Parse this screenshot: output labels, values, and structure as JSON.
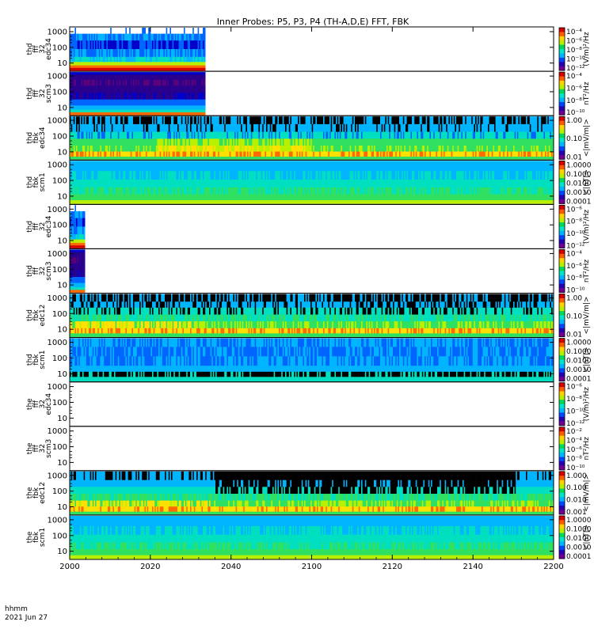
{
  "chart_data": {
    "type": "heatmap",
    "title": "Inner Probes: P5, P3, P4 (TH-A,D,E) FFT, FBK",
    "x_tick_labels": [
      "2000",
      "2020",
      "2040",
      "2100",
      "2120",
      "2140",
      "2200"
    ],
    "xlim": [
      "2000",
      "2200"
    ],
    "time_label": "hhmm",
    "date_label": "2021 Jun 27",
    "y_scale": "log",
    "y_tick_labels": [
      "1000",
      "100",
      "10"
    ],
    "panels": [
      {
        "label": [
          "thd",
          "fff",
          "32",
          "edc34"
        ],
        "probe": "thd",
        "kind": "fff_e",
        "data_coverage": [
          0.0,
          0.28
        ],
        "cb_label": "(V/m)²/Hz",
        "cb_ticks": [
          "10⁻⁴",
          "10⁻⁶",
          "10⁻⁸",
          "10⁻¹⁰",
          "10⁻¹²"
        ]
      },
      {
        "label": [
          "thd",
          "fff",
          "32",
          "scm3"
        ],
        "probe": "thd",
        "kind": "fff_b",
        "data_coverage": [
          0.0,
          0.28
        ],
        "cb_label": "nT²/Hz",
        "cb_ticks": [
          "10⁻⁴",
          "10⁻⁶",
          "10⁻⁸",
          "10⁻¹⁰"
        ]
      },
      {
        "label": [
          "thd",
          "fbk",
          "edc34"
        ],
        "probe": "thd",
        "kind": "fbk_e",
        "data_coverage": [
          0.0,
          1.0
        ],
        "cb_label": "<|mV/m|>",
        "cb_ticks": [
          "1.00",
          "0.10",
          "0.01"
        ]
      },
      {
        "label": [
          "thd",
          "fbk",
          "scm1"
        ],
        "probe": "thd",
        "kind": "fbk_b",
        "data_coverage": [
          0.0,
          1.0
        ],
        "cb_label": "<|nT|>",
        "cb_ticks": [
          "1.0000",
          "0.1000",
          "0.0100",
          "0.0010",
          "0.0001"
        ]
      },
      {
        "label": [
          "thd",
          "fff",
          "32",
          "edc34"
        ],
        "probe": "thd",
        "kind": "fff_e",
        "data_coverage": [
          0.0,
          0.03
        ],
        "cb_label": "(V/m)²/Hz",
        "cb_ticks": [
          "10⁻⁶",
          "10⁻⁸",
          "10⁻¹⁰",
          "10⁻¹²"
        ]
      },
      {
        "label": [
          "thd",
          "fff",
          "32",
          "scm3"
        ],
        "probe": "thd",
        "kind": "fff_b",
        "data_coverage": [
          0.0,
          0.03
        ],
        "cb_label": "nT²/Hz",
        "cb_ticks": [
          "10⁻⁴",
          "10⁻⁶",
          "10⁻⁸",
          "10⁻¹⁰"
        ]
      },
      {
        "label": [
          "thd",
          "fbk",
          "edc12"
        ],
        "probe": "thd",
        "kind": "fbk_e2",
        "data_coverage": [
          0.0,
          1.0
        ],
        "cb_label": "<|mV/m|>",
        "cb_ticks": [
          "1.00",
          "0.10",
          "0.01"
        ]
      },
      {
        "label": [
          "thd",
          "fbk",
          "scm1"
        ],
        "probe": "thd",
        "kind": "fbk_b2",
        "data_coverage": [
          0.0,
          1.0
        ],
        "cb_label": "<|nT|>",
        "cb_ticks": [
          "1.0000",
          "0.1000",
          "0.0100",
          "0.0010",
          "0.0001"
        ]
      },
      {
        "label": [
          "the",
          "fff",
          "32",
          "edc34"
        ],
        "probe": "the",
        "kind": "fff_e",
        "data_coverage": [
          0.0,
          0.0
        ],
        "cb_label": "(V/m)²/Hz",
        "cb_ticks": [
          "10⁻⁶",
          "10⁻⁸",
          "10⁻¹⁰",
          "10⁻¹²"
        ]
      },
      {
        "label": [
          "the",
          "fff",
          "32",
          "scm3"
        ],
        "probe": "the",
        "kind": "fff_b",
        "data_coverage": [
          0.0,
          0.0
        ],
        "cb_label": "nT²/Hz",
        "cb_ticks": [
          "10⁻²",
          "10⁻⁴",
          "10⁻⁶",
          "10⁻⁸",
          "10⁻¹⁰"
        ]
      },
      {
        "label": [
          "the",
          "fbk",
          "edc12"
        ],
        "probe": "the",
        "kind": "fbk_e3",
        "data_coverage": [
          0.0,
          1.0
        ],
        "cb_label": "<|mV/m|>",
        "cb_ticks": [
          "1.000",
          "0.100",
          "0.010",
          "0.001"
        ]
      },
      {
        "label": [
          "the",
          "fbk",
          "scm1"
        ],
        "probe": "the",
        "kind": "fbk_b",
        "data_coverage": [
          0.0,
          1.0
        ],
        "cb_label": "<|nT|>",
        "cb_ticks": [
          "1.0000",
          "0.1000",
          "0.0100",
          "0.0010",
          "0.0001"
        ]
      }
    ],
    "colorbar_colors": [
      "#d40000",
      "#ff5a00",
      "#ffd200",
      "#b4f000",
      "#00d85a",
      "#00e6c8",
      "#00b4ff",
      "#0046ff",
      "#2800b4",
      "#6e0096"
    ]
  }
}
